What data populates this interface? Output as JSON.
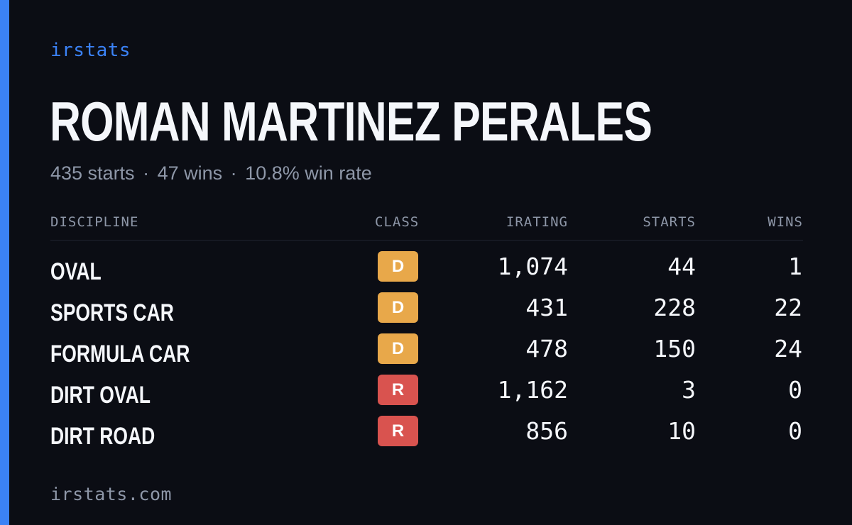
{
  "brand": "irstats",
  "driver": {
    "name": "ROMAN MARTINEZ PERALES"
  },
  "summary": {
    "starts": "435 starts",
    "wins": "47 wins",
    "win_rate": "10.8% win rate",
    "separator": "·"
  },
  "table": {
    "headers": {
      "discipline": "DISCIPLINE",
      "class": "CLASS",
      "irating": "IRATING",
      "starts": "STARTS",
      "wins": "WINS"
    },
    "rows": [
      {
        "discipline": "OVAL",
        "class": "D",
        "class_color": "#e8a84a",
        "irating": "1,074",
        "starts": "44",
        "wins": "1"
      },
      {
        "discipline": "SPORTS CAR",
        "class": "D",
        "class_color": "#e8a84a",
        "irating": "431",
        "starts": "228",
        "wins": "22"
      },
      {
        "discipline": "FORMULA CAR",
        "class": "D",
        "class_color": "#e8a84a",
        "irating": "478",
        "starts": "150",
        "wins": "24"
      },
      {
        "discipline": "DIRT OVAL",
        "class": "R",
        "class_color": "#d9534f",
        "irating": "1,162",
        "starts": "3",
        "wins": "0"
      },
      {
        "discipline": "DIRT ROAD",
        "class": "R",
        "class_color": "#d9534f",
        "irating": "856",
        "starts": "10",
        "wins": "0"
      }
    ]
  },
  "footer": {
    "url": "irstats.com"
  },
  "colors": {
    "accent": "#3b82f6",
    "background": "#0b0d14",
    "muted": "#8e97a8"
  }
}
